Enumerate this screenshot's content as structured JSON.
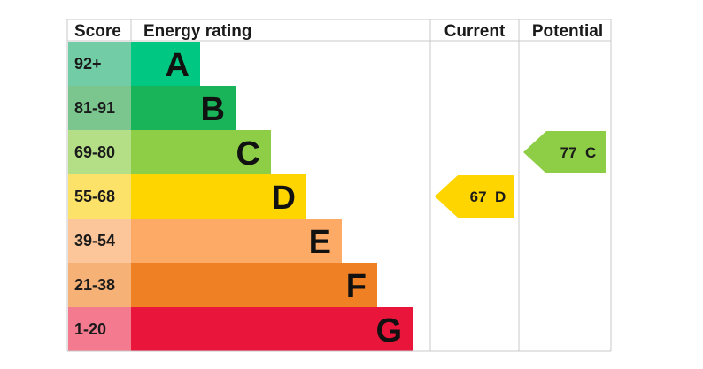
{
  "chart_data": {
    "type": "bar",
    "headers": {
      "score": "Score",
      "energy_rating": "Energy rating",
      "current": "Current",
      "potential": "Potential"
    },
    "bands": [
      {
        "score_range": "92+",
        "letter": "A",
        "color": "#00c781",
        "score_bg": "#72cda6"
      },
      {
        "score_range": "81-91",
        "letter": "B",
        "color": "#19b459",
        "score_bg": "#7bc68f"
      },
      {
        "score_range": "69-80",
        "letter": "C",
        "color": "#8dce46",
        "score_bg": "#b4df86"
      },
      {
        "score_range": "55-68",
        "letter": "D",
        "color": "#ffd500",
        "score_bg": "#fde26a"
      },
      {
        "score_range": "39-54",
        "letter": "E",
        "color": "#fcaa65",
        "score_bg": "#fdc69a"
      },
      {
        "score_range": "21-38",
        "letter": "F",
        "color": "#ef8023",
        "score_bg": "#f6b177"
      },
      {
        "score_range": "1-20",
        "letter": "G",
        "color": "#e9153b",
        "score_bg": "#f47a8f"
      }
    ],
    "current": {
      "value": 67,
      "letter": "D",
      "label": "67  D",
      "color": "#ffd500"
    },
    "potential": {
      "value": 77,
      "letter": "C",
      "label": "77  C",
      "color": "#8dce46"
    }
  }
}
